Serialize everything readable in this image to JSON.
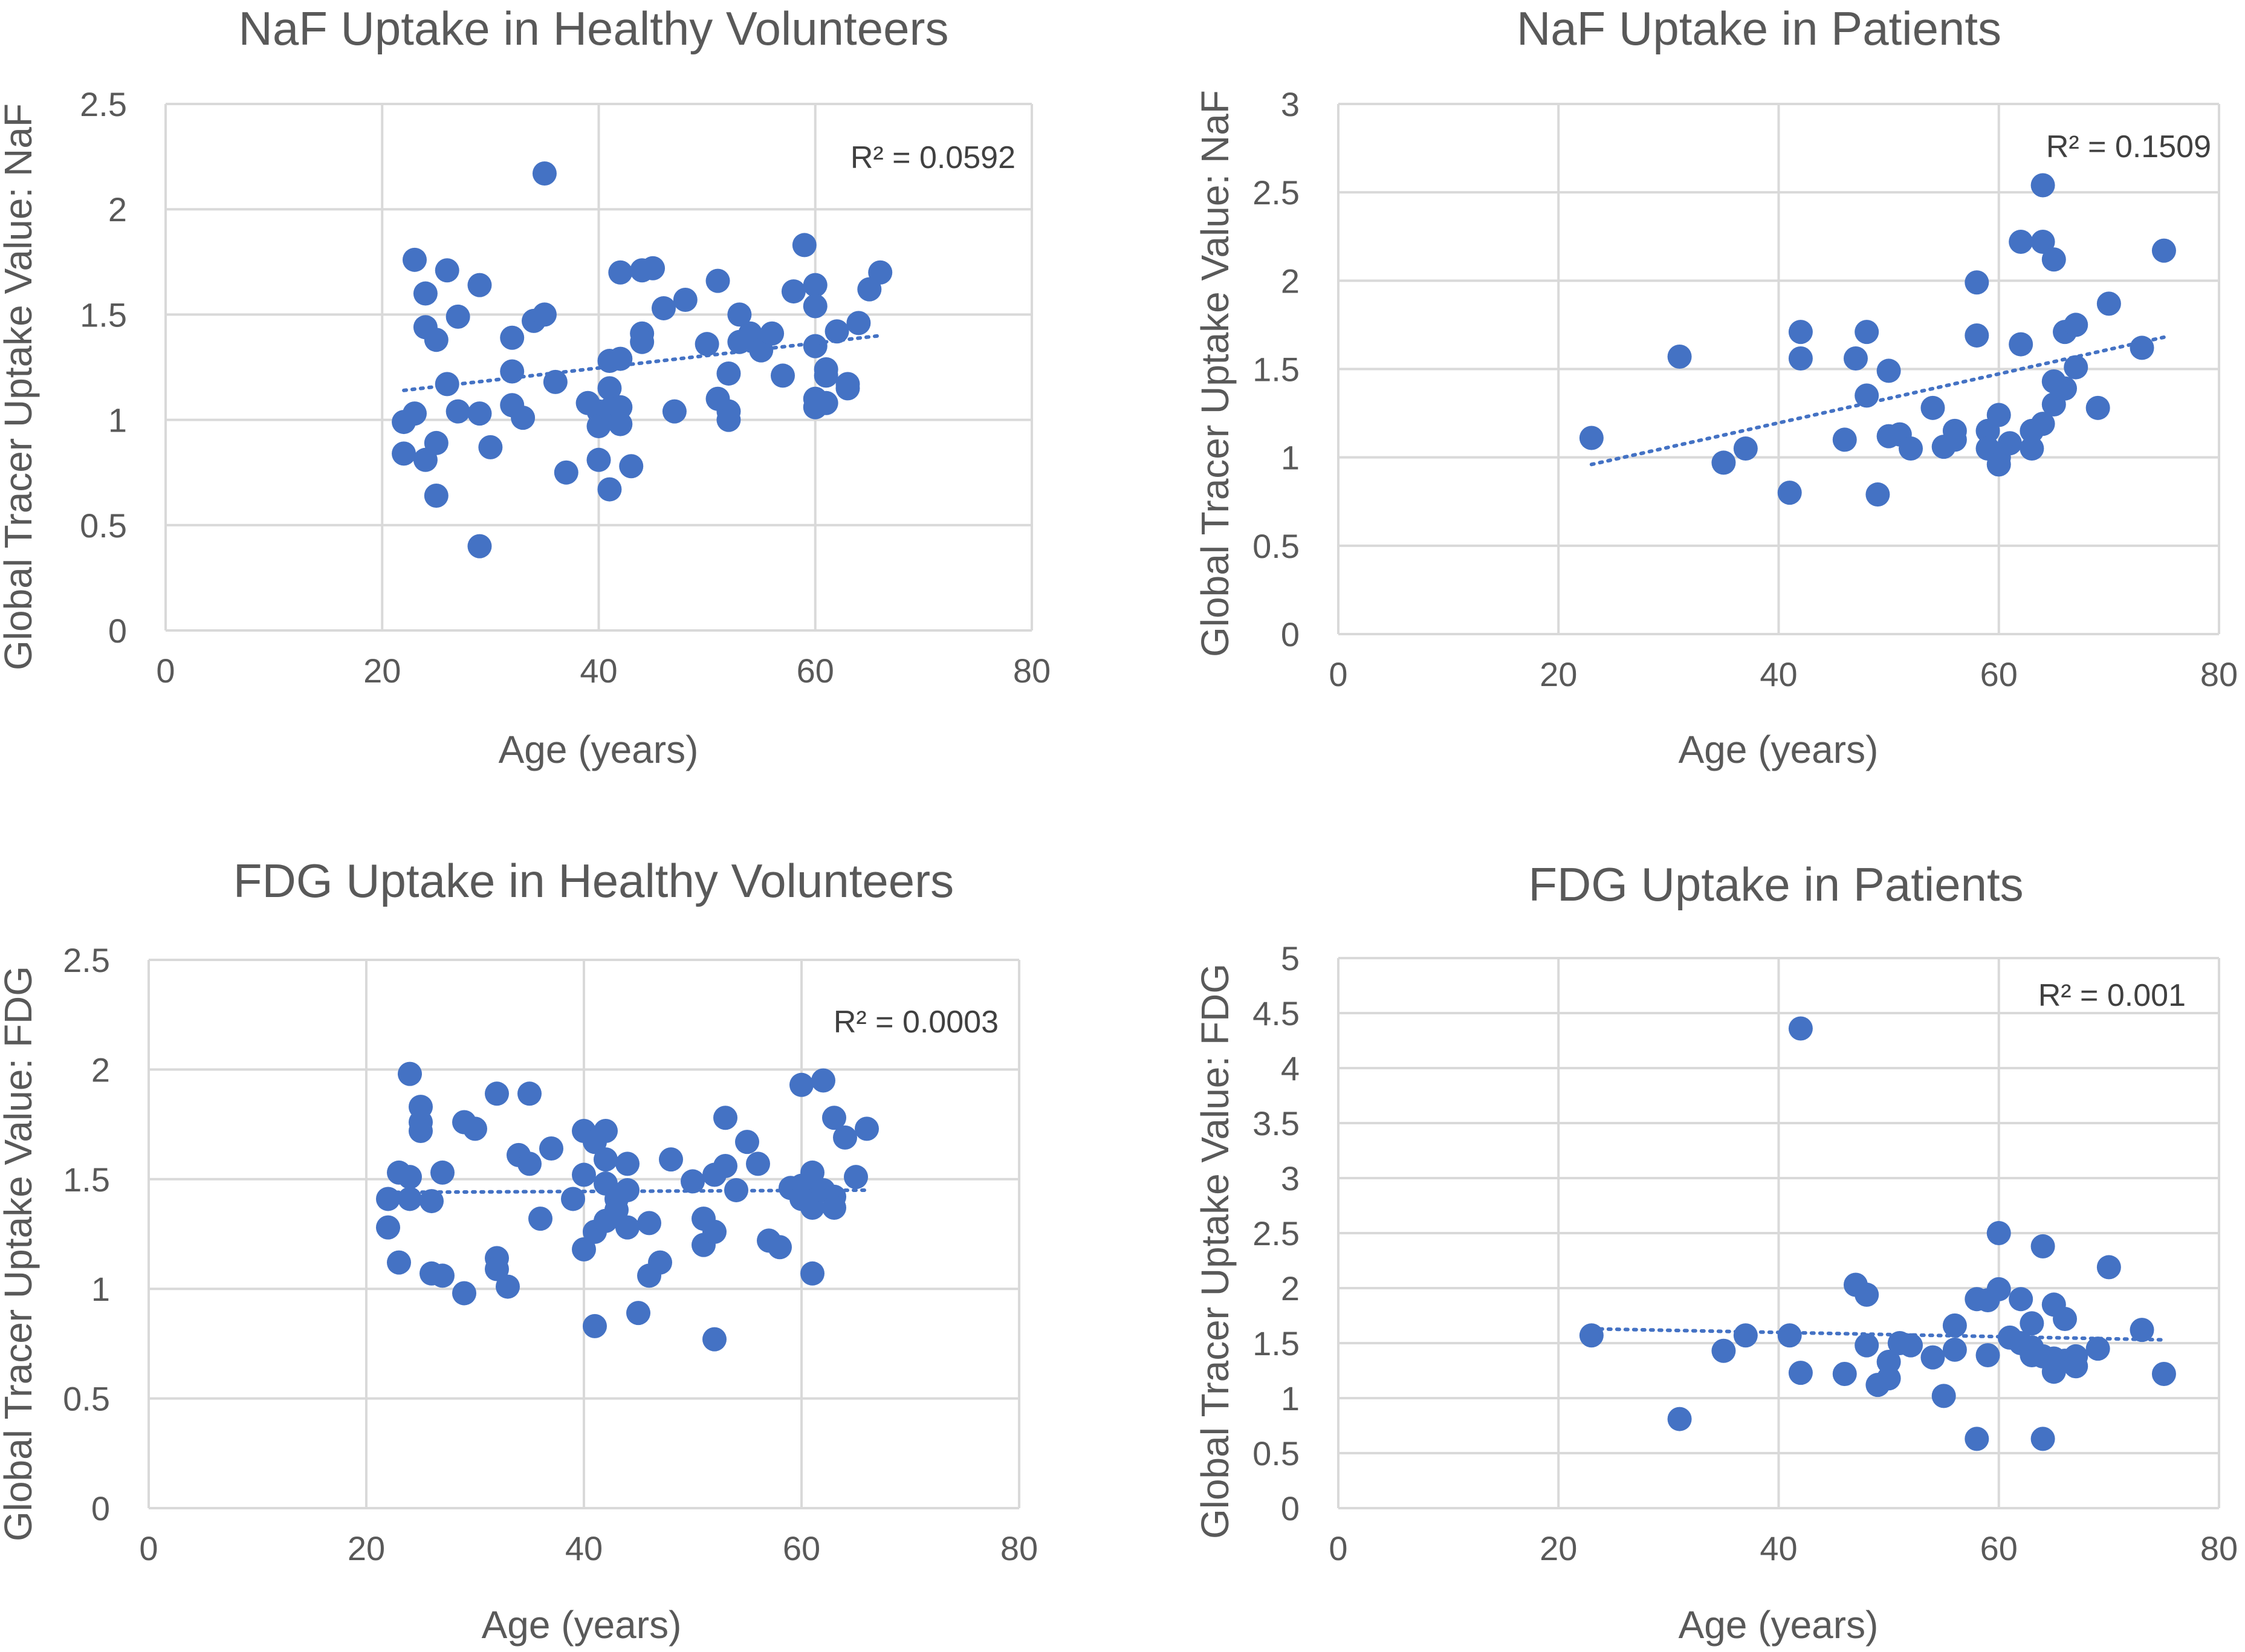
{
  "chart_data": [
    {
      "type": "scatter",
      "title": "NaF Uptake in Healthy Volunteers",
      "xlabel": "Age (years)",
      "ylabel": "Global Tracer Uptake Value: NaF",
      "xlim": [
        0,
        80
      ],
      "ylim": [
        0,
        2.5
      ],
      "x_ticks": [
        "0",
        "20",
        "40",
        "60",
        "80"
      ],
      "y_ticks": [
        "0",
        "0.5",
        "1",
        "1.5",
        "2",
        "2.5"
      ],
      "r2_label": "R² = 0.0592",
      "trendline": {
        "x": [
          22,
          66
        ],
        "y": [
          1.14,
          1.4
        ]
      },
      "points": [
        [
          22,
          0.99
        ],
        [
          22,
          0.84
        ],
        [
          23,
          1.76
        ],
        [
          23,
          1.03
        ],
        [
          24,
          1.6
        ],
        [
          24,
          1.44
        ],
        [
          24,
          0.81
        ],
        [
          25,
          1.38
        ],
        [
          25,
          0.89
        ],
        [
          25,
          0.64
        ],
        [
          26,
          1.71
        ],
        [
          26,
          1.17
        ],
        [
          27,
          1.49
        ],
        [
          27,
          1.04
        ],
        [
          29,
          1.64
        ],
        [
          29,
          1.03
        ],
        [
          29,
          0.4
        ],
        [
          30,
          0.87
        ],
        [
          32,
          1.39
        ],
        [
          32,
          1.23
        ],
        [
          32,
          1.07
        ],
        [
          33,
          1.01
        ],
        [
          34,
          1.47
        ],
        [
          35,
          1.5
        ],
        [
          35,
          2.17
        ],
        [
          36,
          1.18
        ],
        [
          37,
          0.75
        ],
        [
          39,
          1.08
        ],
        [
          40,
          1.04
        ],
        [
          40,
          0.97
        ],
        [
          40,
          0.81
        ],
        [
          41,
          1.28
        ],
        [
          41,
          1.15
        ],
        [
          41,
          1.05
        ],
        [
          41,
          0.67
        ],
        [
          42,
          1.7
        ],
        [
          42,
          1.29
        ],
        [
          42,
          1.06
        ],
        [
          42,
          0.98
        ],
        [
          43,
          0.78
        ],
        [
          44,
          1.41
        ],
        [
          44,
          1.37
        ],
        [
          44,
          1.71
        ],
        [
          45,
          1.72
        ],
        [
          46,
          1.53
        ],
        [
          47,
          1.04
        ],
        [
          48,
          1.57
        ],
        [
          50,
          1.36
        ],
        [
          51,
          1.66
        ],
        [
          51,
          1.1
        ],
        [
          52,
          1.22
        ],
        [
          52,
          1.04
        ],
        [
          52,
          1.0
        ],
        [
          53,
          1.5
        ],
        [
          53,
          1.37
        ],
        [
          54,
          1.41
        ],
        [
          55,
          1.33
        ],
        [
          56,
          1.41
        ],
        [
          57,
          1.21
        ],
        [
          58,
          1.61
        ],
        [
          59,
          1.83
        ],
        [
          60,
          1.64
        ],
        [
          60,
          1.54
        ],
        [
          60,
          1.35
        ],
        [
          60,
          1.1
        ],
        [
          60,
          1.06
        ],
        [
          61,
          1.24
        ],
        [
          61,
          1.21
        ],
        [
          61,
          1.08
        ],
        [
          62,
          1.42
        ],
        [
          63,
          1.17
        ],
        [
          63,
          1.15
        ],
        [
          64,
          1.46
        ],
        [
          65,
          1.62
        ],
        [
          66,
          1.7
        ]
      ]
    },
    {
      "type": "scatter",
      "title": "NaF Uptake in Patients",
      "xlabel": "Age (years)",
      "ylabel": "Global Tracer Uptake Value: NaF",
      "xlim": [
        0,
        80
      ],
      "ylim": [
        0,
        3
      ],
      "x_ticks": [
        "0",
        "20",
        "40",
        "60",
        "80"
      ],
      "y_ticks": [
        "0",
        "0.5",
        "1",
        "1.5",
        "2",
        "2.5",
        "3"
      ],
      "r2_label": "R² = 0.1509",
      "trendline": {
        "x": [
          23,
          75
        ],
        "y": [
          0.96,
          1.68
        ]
      },
      "points": [
        [
          23,
          1.11
        ],
        [
          31,
          1.57
        ],
        [
          35,
          0.97
        ],
        [
          37,
          1.05
        ],
        [
          41,
          0.8
        ],
        [
          42,
          1.71
        ],
        [
          42,
          1.56
        ],
        [
          46,
          1.1
        ],
        [
          47,
          1.56
        ],
        [
          48,
          1.71
        ],
        [
          48,
          1.35
        ],
        [
          49,
          0.79
        ],
        [
          50,
          1.49
        ],
        [
          50,
          1.12
        ],
        [
          51,
          1.13
        ],
        [
          52,
          1.05
        ],
        [
          54,
          1.28
        ],
        [
          55,
          1.06
        ],
        [
          56,
          1.15
        ],
        [
          56,
          1.1
        ],
        [
          58,
          1.99
        ],
        [
          58,
          1.69
        ],
        [
          59,
          1.15
        ],
        [
          59,
          1.05
        ],
        [
          60,
          1.24
        ],
        [
          60,
          1.0
        ],
        [
          60,
          0.96
        ],
        [
          61,
          1.08
        ],
        [
          62,
          2.22
        ],
        [
          62,
          1.64
        ],
        [
          63,
          1.15
        ],
        [
          63,
          1.05
        ],
        [
          64,
          2.54
        ],
        [
          64,
          2.22
        ],
        [
          64,
          1.19
        ],
        [
          65,
          2.12
        ],
        [
          65,
          1.43
        ],
        [
          65,
          1.3
        ],
        [
          66,
          1.71
        ],
        [
          66,
          1.39
        ],
        [
          67,
          1.75
        ],
        [
          67,
          1.51
        ],
        [
          69,
          1.28
        ],
        [
          70,
          1.87
        ],
        [
          73,
          1.62
        ],
        [
          75,
          2.17
        ]
      ]
    },
    {
      "type": "scatter",
      "title": "FDG Uptake in Healthy Volunteers",
      "xlabel": "Age (years)",
      "ylabel": "Global Tracer Uptake Value: FDG",
      "xlim": [
        0,
        80
      ],
      "ylim": [
        0,
        2.5
      ],
      "x_ticks": [
        "0",
        "20",
        "40",
        "60",
        "80"
      ],
      "y_ticks": [
        "0",
        "0.5",
        "1",
        "1.5",
        "2",
        "2.5"
      ],
      "r2_label": "R² = 0.0003",
      "trendline": {
        "x": [
          22,
          66
        ],
        "y": [
          1.44,
          1.45
        ]
      },
      "points": [
        [
          22,
          1.41
        ],
        [
          22,
          1.28
        ],
        [
          23,
          1.53
        ],
        [
          23,
          1.12
        ],
        [
          24,
          1.98
        ],
        [
          24,
          1.51
        ],
        [
          24,
          1.41
        ],
        [
          25,
          1.83
        ],
        [
          25,
          1.76
        ],
        [
          25,
          1.72
        ],
        [
          26,
          1.4
        ],
        [
          26,
          1.07
        ],
        [
          27,
          1.53
        ],
        [
          27,
          1.06
        ],
        [
          29,
          1.76
        ],
        [
          29,
          0.98
        ],
        [
          30,
          1.73
        ],
        [
          32,
          1.89
        ],
        [
          32,
          1.14
        ],
        [
          32,
          1.09
        ],
        [
          33,
          1.01
        ],
        [
          34,
          1.61
        ],
        [
          35,
          1.89
        ],
        [
          35,
          1.57
        ],
        [
          36,
          1.32
        ],
        [
          37,
          1.64
        ],
        [
          39,
          1.41
        ],
        [
          40,
          1.72
        ],
        [
          40,
          1.52
        ],
        [
          40,
          1.18
        ],
        [
          41,
          1.67
        ],
        [
          41,
          1.26
        ],
        [
          41,
          0.83
        ],
        [
          42,
          1.72
        ],
        [
          42,
          1.59
        ],
        [
          42,
          1.48
        ],
        [
          42,
          1.31
        ],
        [
          43,
          1.41
        ],
        [
          43,
          1.36
        ],
        [
          44,
          1.57
        ],
        [
          44,
          1.45
        ],
        [
          44,
          1.28
        ],
        [
          45,
          0.89
        ],
        [
          46,
          1.3
        ],
        [
          46,
          1.06
        ],
        [
          47,
          1.12
        ],
        [
          48,
          1.59
        ],
        [
          50,
          1.49
        ],
        [
          51,
          1.32
        ],
        [
          51,
          1.2
        ],
        [
          52,
          1.52
        ],
        [
          52,
          1.26
        ],
        [
          52,
          0.77
        ],
        [
          53,
          1.78
        ],
        [
          53,
          1.56
        ],
        [
          54,
          1.45
        ],
        [
          55,
          1.67
        ],
        [
          56,
          1.57
        ],
        [
          57,
          1.22
        ],
        [
          58,
          1.19
        ],
        [
          59,
          1.46
        ],
        [
          60,
          1.93
        ],
        [
          60,
          1.47
        ],
        [
          60,
          1.41
        ],
        [
          61,
          1.53
        ],
        [
          61,
          1.43
        ],
        [
          61,
          1.37
        ],
        [
          61,
          1.07
        ],
        [
          62,
          1.95
        ],
        [
          62,
          1.45
        ],
        [
          63,
          1.78
        ],
        [
          63,
          1.42
        ],
        [
          63,
          1.37
        ],
        [
          64,
          1.69
        ],
        [
          65,
          1.51
        ],
        [
          66,
          1.73
        ]
      ]
    },
    {
      "type": "scatter",
      "title": "FDG Uptake in Patients",
      "xlabel": "Age (years)",
      "ylabel": "Global Tracer Uptake Value: FDG",
      "xlim": [
        0,
        80
      ],
      "ylim": [
        0,
        5
      ],
      "x_ticks": [
        "0",
        "20",
        "40",
        "60",
        "80"
      ],
      "y_ticks": [
        "0",
        "0.5",
        "1",
        "1.5",
        "2",
        "2.5",
        "3",
        "3.5",
        "4",
        "4.5",
        "5"
      ],
      "r2_label": "R² = 0.001",
      "trendline": {
        "x": [
          23,
          75
        ],
        "y": [
          1.63,
          1.53
        ]
      },
      "points": [
        [
          23,
          1.57
        ],
        [
          31,
          0.81
        ],
        [
          35,
          1.43
        ],
        [
          37,
          1.57
        ],
        [
          41,
          1.57
        ],
        [
          42,
          4.36
        ],
        [
          42,
          1.23
        ],
        [
          46,
          1.22
        ],
        [
          47,
          2.03
        ],
        [
          48,
          1.94
        ],
        [
          48,
          1.48
        ],
        [
          49,
          1.12
        ],
        [
          50,
          1.33
        ],
        [
          50,
          1.18
        ],
        [
          51,
          1.5
        ],
        [
          52,
          1.48
        ],
        [
          54,
          1.37
        ],
        [
          55,
          1.02
        ],
        [
          56,
          1.66
        ],
        [
          56,
          1.44
        ],
        [
          58,
          1.9
        ],
        [
          58,
          0.63
        ],
        [
          59,
          1.89
        ],
        [
          59,
          1.39
        ],
        [
          60,
          2.5
        ],
        [
          60,
          1.99
        ],
        [
          61,
          1.55
        ],
        [
          62,
          1.9
        ],
        [
          62,
          1.5
        ],
        [
          63,
          1.68
        ],
        [
          63,
          1.46
        ],
        [
          63,
          1.39
        ],
        [
          64,
          2.38
        ],
        [
          64,
          1.38
        ],
        [
          64,
          0.63
        ],
        [
          65,
          1.85
        ],
        [
          65,
          1.36
        ],
        [
          65,
          1.24
        ],
        [
          66,
          1.72
        ],
        [
          66,
          1.34
        ],
        [
          67,
          1.38
        ],
        [
          67,
          1.29
        ],
        [
          69,
          1.45
        ],
        [
          70,
          2.19
        ],
        [
          73,
          1.62
        ],
        [
          75,
          1.22
        ]
      ]
    }
  ]
}
